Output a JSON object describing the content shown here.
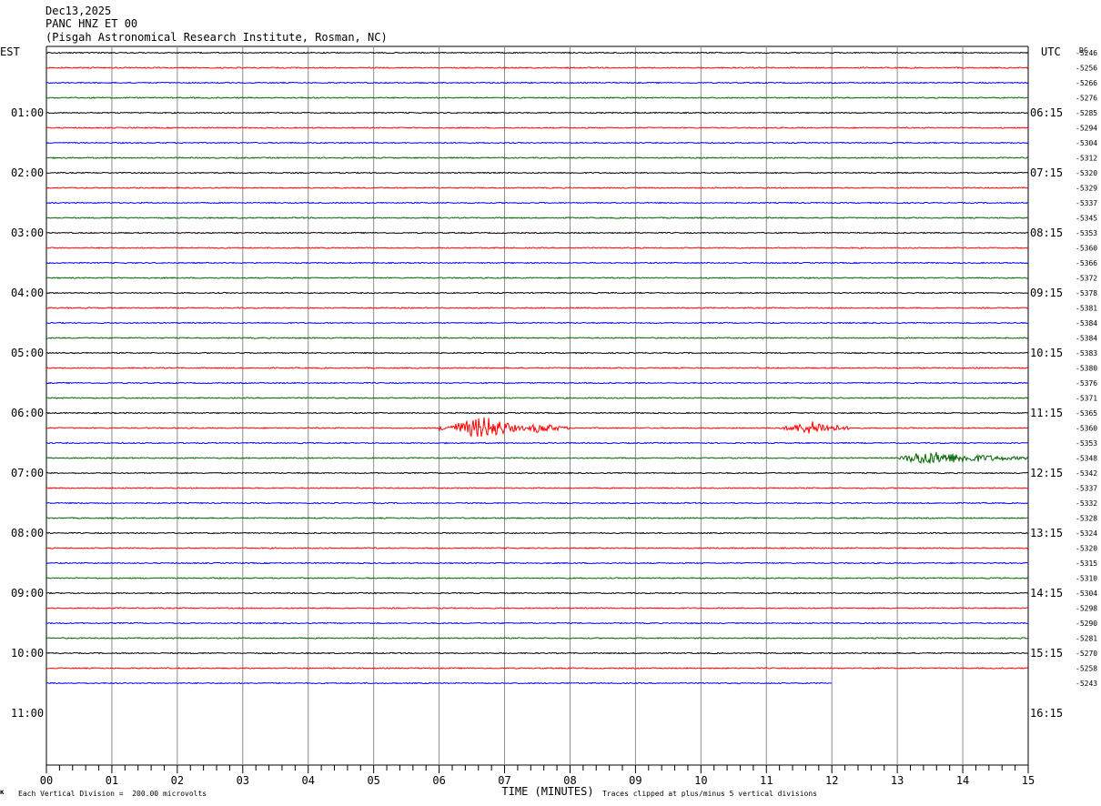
{
  "header": {
    "date": "Dec13,2025",
    "station": "PANC HNZ ET 00",
    "site": "(Pisgah Astronomical Research Institute, Rosman, NC)"
  },
  "chart_data": {
    "type": "line",
    "title": "",
    "left_axis_label": "EST",
    "right_axis_label": "UTC",
    "dc_label": "DC",
    "xlabel": "TIME (MINUTES)",
    "x_range": [
      0,
      15
    ],
    "x_ticks": [
      "00",
      "01",
      "02",
      "03",
      "04",
      "05",
      "06",
      "07",
      "08",
      "09",
      "10",
      "11",
      "12",
      "13",
      "14",
      "15"
    ],
    "left_hour_labels": [
      "01:00",
      "02:00",
      "03:00",
      "04:00",
      "05:00",
      "06:00",
      "07:00",
      "08:00",
      "09:00",
      "10:00",
      "11:00"
    ],
    "right_hour_labels": [
      "06:15",
      "07:15",
      "08:15",
      "09:15",
      "10:15",
      "11:15",
      "12:15",
      "13:15",
      "14:15",
      "15:15",
      "16:15"
    ],
    "trace_colors": [
      "#000000",
      "#ff0000",
      "#0000ff",
      "#006600"
    ],
    "dc_offsets": [
      "-5246",
      "-5256",
      "-5266",
      "-5276",
      "-5285",
      "-5294",
      "-5304",
      "-5312",
      "-5320",
      "-5329",
      "-5337",
      "-5345",
      "-5353",
      "-5360",
      "-5366",
      "-5372",
      "-5378",
      "-5381",
      "-5384",
      "-5384",
      "-5383",
      "-5380",
      "-5376",
      "-5371",
      "-5365",
      "-5360",
      "-5353",
      "-5348",
      "-5342",
      "-5337",
      "-5332",
      "-5328",
      "-5324",
      "-5320",
      "-5315",
      "-5310",
      "-5304",
      "-5298",
      "-5290",
      "-5281",
      "-5270",
      "-5258",
      "-5243"
    ],
    "trace_count": 43,
    "last_trace_end_minute": 12,
    "events": [
      {
        "trace": 25,
        "start_min": 6.0,
        "end_min": 7.3,
        "peak_min": 6.7,
        "amplitude": 1.0
      },
      {
        "trace": 25,
        "start_min": 7.3,
        "end_min": 8.0,
        "peak_min": 7.5,
        "amplitude": 0.4
      },
      {
        "trace": 25,
        "start_min": 11.2,
        "end_min": 12.3,
        "peak_min": 11.7,
        "amplitude": 0.55
      },
      {
        "trace": 27,
        "start_min": 13.0,
        "end_min": 15.0,
        "peak_min": 13.35,
        "amplitude": 0.55
      }
    ],
    "footer_left": "Each Vertical Division =  200.00 microvolts",
    "footer_right": "Traces clipped at plus/minus 5 vertical divisions"
  }
}
